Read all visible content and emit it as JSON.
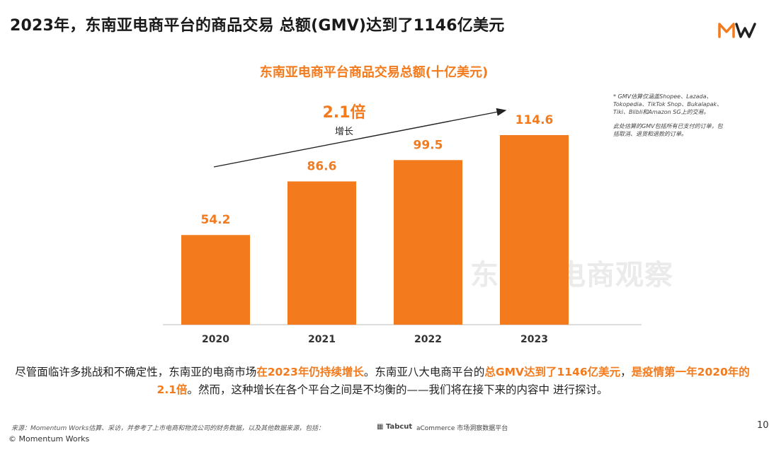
{
  "page_title": "2023年，东南亚电商平台的商品交易 总额(GMV)达到了1146亿美元",
  "logo_text": "MW",
  "watermark": "东南亚电商观察",
  "growth": {
    "value": "2.1倍",
    "caption": "增长"
  },
  "notes": [
    "* GMV估算仅涵盖Shopee、Lazada、Tokopedia、TikTok Shop、Bukalapak、Tiki、Blibli和Amazon SG上的交易。",
    "此处估算的GMV包括所有已支付的订单，包括取消、退货和退款的订单。"
  ],
  "chart_data": {
    "type": "bar",
    "title": "东南亚电商平台商品交易总额(十亿美元)",
    "categories": [
      "2020",
      "2021",
      "2022",
      "2023"
    ],
    "values": [
      54.2,
      86.6,
      99.5,
      114.6
    ],
    "value_labels": [
      "54.2",
      "86.6",
      "99.5",
      "114.6"
    ],
    "xlabel": "",
    "ylabel": "",
    "ylim": [
      0,
      114.6
    ],
    "grid": false,
    "bar_color": "#f37b1d",
    "label_color": "#f37b1d"
  },
  "summary": {
    "p1": "尽管面临许多挑战和不确定性，东南亚的电商市场",
    "h1": "在2023年仍持续增长",
    "p2": "。东南亚八大电商平台的",
    "h2": "总GMV达到了1146亿美元",
    "p3": "，",
    "h3": "是疫情第一年2020年的2.1倍",
    "p4": "。然而，这种增长在各个平台之间是不均衡的——我们将在接下来的内容中 进行探讨。"
  },
  "sources": {
    "text": "来源：Momentum Works估算、采访，并参考了上市电商和物流公司的财务数据，以及其他数据来源，包括：",
    "tabcut": "Tabcut",
    "acommerce": "aCommerce 市场洞察数据平台"
  },
  "copyright": "© Momentum Works",
  "page_number": "10",
  "colors": {
    "accent": "#f37b1d",
    "text": "#222222",
    "watermark": "#ebebeb"
  }
}
